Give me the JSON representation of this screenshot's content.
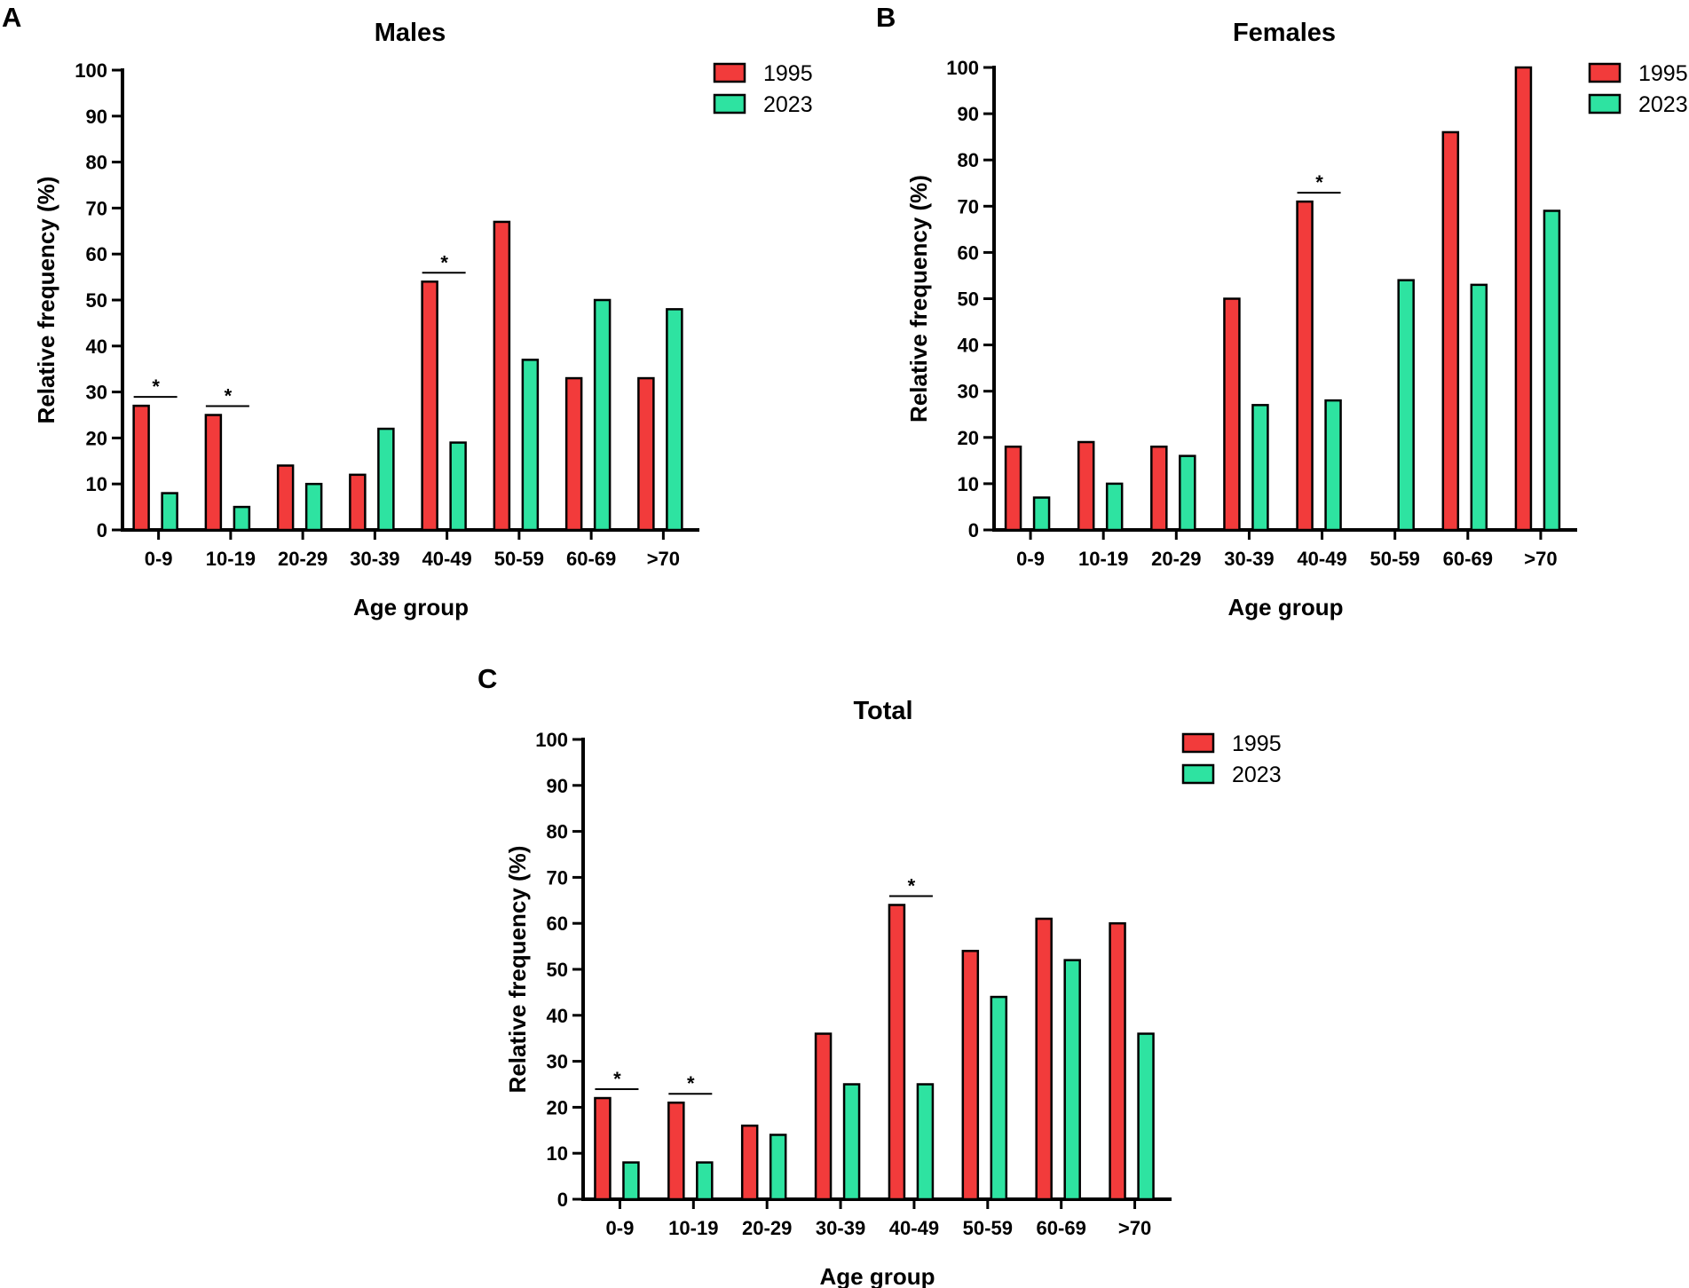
{
  "colors": {
    "series_1995": "#f23b3b",
    "series_2023": "#2ee3a1",
    "axis": "#000000"
  },
  "chart_data": [
    {
      "panel": "A",
      "type": "bar",
      "title": "Males",
      "xlabel": "Age group",
      "ylabel": "Relative frequency (%)",
      "ylim": [
        0,
        100
      ],
      "yticks": [
        0,
        10,
        20,
        30,
        40,
        50,
        60,
        70,
        80,
        90,
        100
      ],
      "categories": [
        "0-9",
        "10-19",
        "20-29",
        "30-39",
        "40-49",
        "50-59",
        "60-69",
        ">70"
      ],
      "series": [
        {
          "name": "1995",
          "values": [
            27,
            25,
            14,
            12,
            54,
            67,
            33,
            33
          ]
        },
        {
          "name": "2023",
          "values": [
            8,
            5,
            10,
            22,
            19,
            37,
            50,
            48
          ]
        }
      ],
      "significance": [
        {
          "category": "0-9",
          "label": "*"
        },
        {
          "category": "10-19",
          "label": "*"
        },
        {
          "category": "40-49",
          "label": "*"
        }
      ],
      "legend": "top-right"
    },
    {
      "panel": "B",
      "type": "bar",
      "title": "Females",
      "xlabel": "Age group",
      "ylabel": "Relative frequency (%)",
      "ylim": [
        0,
        100
      ],
      "yticks": [
        0,
        10,
        20,
        30,
        40,
        50,
        60,
        70,
        80,
        90,
        100
      ],
      "categories": [
        "0-9",
        "10-19",
        "20-29",
        "30-39",
        "40-49",
        "50-59",
        "60-69",
        ">70"
      ],
      "series": [
        {
          "name": "1995",
          "values": [
            18,
            19,
            18,
            50,
            71,
            0,
            86,
            100
          ]
        },
        {
          "name": "2023",
          "values": [
            7,
            10,
            16,
            27,
            28,
            54,
            53,
            69
          ]
        }
      ],
      "significance": [
        {
          "category": "40-49",
          "label": "*"
        }
      ],
      "legend": "top-right"
    },
    {
      "panel": "C",
      "type": "bar",
      "title": "Total",
      "xlabel": "Age group",
      "ylabel": "Relative frequency (%)",
      "ylim": [
        0,
        100
      ],
      "yticks": [
        0,
        10,
        20,
        30,
        40,
        50,
        60,
        70,
        80,
        90,
        100
      ],
      "categories": [
        "0-9",
        "10-19",
        "20-29",
        "30-39",
        "40-49",
        "50-59",
        "60-69",
        ">70"
      ],
      "series": [
        {
          "name": "1995",
          "values": [
            22,
            21,
            16,
            36,
            64,
            54,
            61,
            60
          ]
        },
        {
          "name": "2023",
          "values": [
            8,
            8,
            14,
            25,
            25,
            44,
            52,
            36
          ]
        }
      ],
      "significance": [
        {
          "category": "0-9",
          "label": "*"
        },
        {
          "category": "10-19",
          "label": "*"
        },
        {
          "category": "40-49",
          "label": "*"
        }
      ],
      "legend": "top-right"
    }
  ]
}
